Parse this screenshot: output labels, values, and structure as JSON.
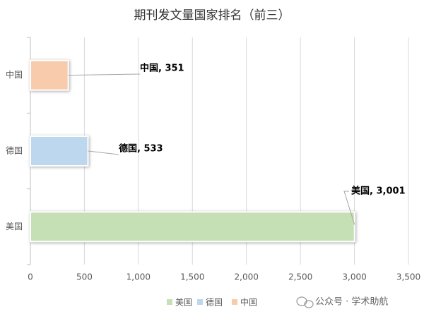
{
  "chart_data": {
    "type": "bar",
    "orientation": "horizontal",
    "title": "期刊发文量国家排名（前三）",
    "categories": [
      "中国",
      "德国",
      "美国"
    ],
    "values": [
      351,
      533,
      3001
    ],
    "value_labels": [
      "中国, 351",
      "德国, 533",
      "美国, 3,001"
    ],
    "colors": [
      "#f8cbad",
      "#bdd7ee",
      "#c5e0b4"
    ],
    "xlim": [
      0,
      3500
    ],
    "xticks": [
      0,
      500,
      {
        "value": 1000,
        "label": "1,000"
      },
      {
        "value": 1500,
        "label": "1,500"
      },
      {
        "value": 2000,
        "label": "2,000"
      },
      {
        "value": 2500,
        "label": "2,500"
      },
      {
        "value": 3000,
        "label": "3,000"
      },
      {
        "value": 3500,
        "label": "3,500"
      }
    ],
    "grid": true
  },
  "watermark": "公众号 · 学术助航"
}
